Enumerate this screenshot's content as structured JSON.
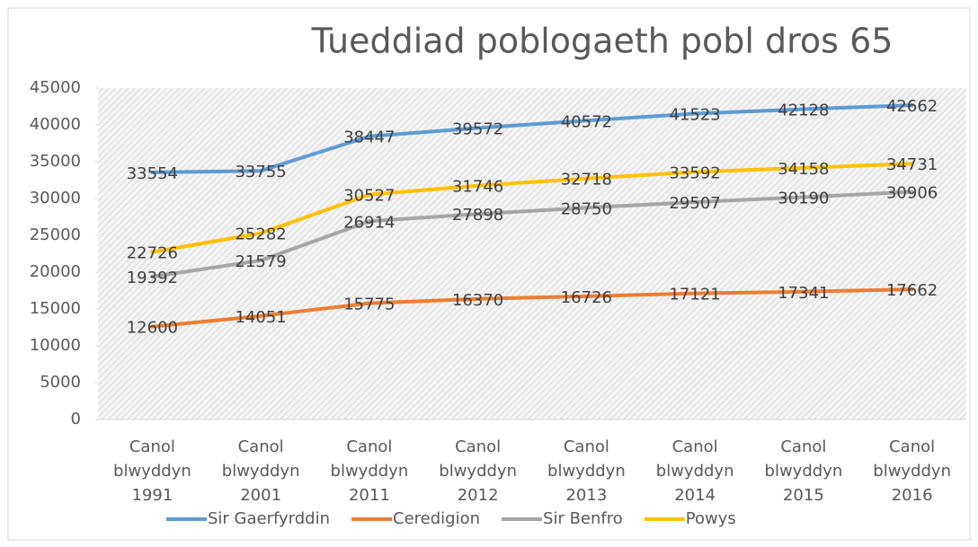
{
  "chart_data": {
    "type": "line",
    "title": "Tueddiad poblogaeth pobl dros 65",
    "categories": [
      "Canol blwyddyn 1991",
      "Canol blwyddyn 2001",
      "Canol blwyddyn 2011",
      "Canol blwyddyn 2012",
      "Canol blwyddyn 2013",
      "Canol blwyddyn 2014",
      "Canol blwyddyn 2015",
      "Canol blwyddyn 2016"
    ],
    "series": [
      {
        "name": "Sir Gaerfyrddin",
        "color": "#5b9bd5",
        "values": [
          33554,
          33755,
          38447,
          39572,
          40572,
          41523,
          42128,
          42662
        ]
      },
      {
        "name": "Ceredigion",
        "color": "#ed7d31",
        "values": [
          12600,
          14051,
          15775,
          16370,
          16726,
          17121,
          17341,
          17662
        ]
      },
      {
        "name": "Sir Benfro",
        "color": "#a5a5a5",
        "values": [
          19392,
          21579,
          26914,
          27898,
          28750,
          29507,
          30190,
          30906
        ]
      },
      {
        "name": "Powys",
        "color": "#ffc000",
        "values": [
          22726,
          25282,
          30527,
          31746,
          32718,
          33592,
          34158,
          34731
        ]
      }
    ],
    "ylim": [
      0,
      45000
    ],
    "yticks": [
      0,
      5000,
      10000,
      15000,
      20000,
      25000,
      30000,
      35000,
      40000,
      45000
    ],
    "legend": "bottom",
    "data_labels": true
  }
}
